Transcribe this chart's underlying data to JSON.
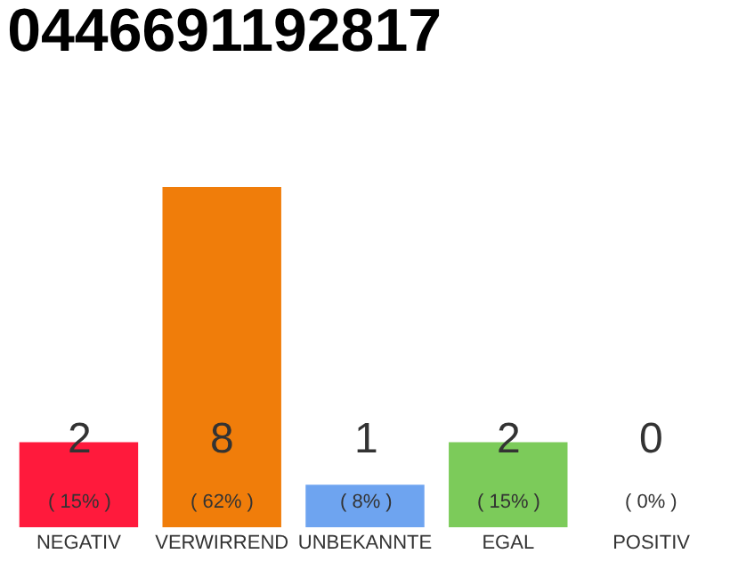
{
  "chart_data": {
    "type": "bar",
    "title": "0446691192817",
    "categories": [
      "NEGATIV",
      "VERWIRREND",
      "UNBEKANNTE",
      "EGAL",
      "POSITIV"
    ],
    "values": [
      2,
      8,
      1,
      2,
      0
    ],
    "colors": [
      "#ff1a3c",
      "#f07d0a",
      "#6ea4f0",
      "#7ccb5a",
      "#cccccc"
    ],
    "value_labels": [
      "2\n( 15% )",
      "8\n( 62% )",
      "1\n( 8% )",
      "2\n( 15% )",
      "0\n( 0% )"
    ],
    "legend": false
  }
}
